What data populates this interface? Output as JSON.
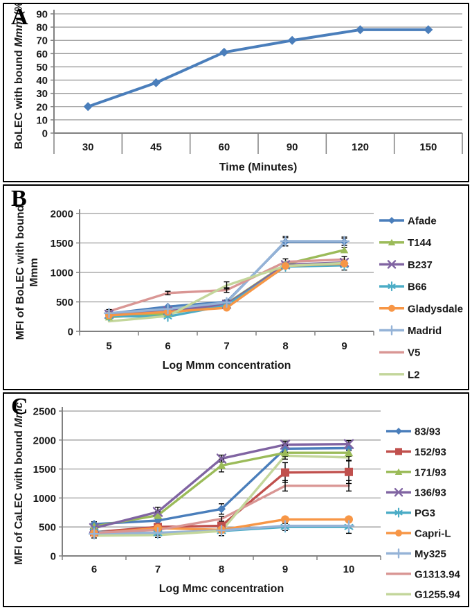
{
  "style": {
    "grid_color": "#9a9a9a",
    "axis_color": "#808080",
    "error_bar_color": "#000000",
    "text_color": "#1a1a1a",
    "background": "#ffffff"
  },
  "chart_data": [
    {
      "panel_label": "A",
      "type": "line",
      "title": "",
      "categories": [
        "30",
        "45",
        "60",
        "90",
        "120",
        "150"
      ],
      "xlabel": "Time (Minutes)",
      "ylabel_segments": [
        [
          {
            "t": "BoLEC with bound ",
            "i": false
          },
          {
            "t": "Mmm",
            "i": true
          },
          {
            "t": " (%)",
            "i": false
          }
        ]
      ],
      "ylim": [
        0,
        90
      ],
      "yticks": [
        0,
        10,
        20,
        30,
        40,
        50,
        60,
        70,
        80,
        90
      ],
      "grid": true,
      "legend_position": "none",
      "series": [
        {
          "name": "BoLEC with bound Mmm",
          "color": "#4a7ebb",
          "marker": "diamond",
          "values": [
            20,
            38,
            61,
            70,
            78,
            78
          ],
          "errors": [
            0,
            0,
            0,
            0,
            0,
            0
          ]
        }
      ]
    },
    {
      "panel_label": "B",
      "type": "line",
      "title": "",
      "categories": [
        "5",
        "6",
        "7",
        "8",
        "9"
      ],
      "xlabel": "Log  Mmm concentration",
      "ylabel_segments": [
        [
          {
            "t": "MFI of BoLEC with bound",
            "i": false
          }
        ],
        [
          {
            "t": "Mmm",
            "i": false
          }
        ]
      ],
      "ylim": [
        0,
        2000
      ],
      "yticks": [
        0,
        500,
        1000,
        1500,
        2000
      ],
      "grid": true,
      "legend_position": "right",
      "series": [
        {
          "name": "Afade",
          "color": "#4a7ebb",
          "marker": "diamond",
          "values": [
            300,
            420,
            500,
            1520,
            1520
          ],
          "errors": [
            30,
            0,
            0,
            70,
            60
          ]
        },
        {
          "name": "T144",
          "color": "#9bbb59",
          "marker": "triangle",
          "values": [
            240,
            300,
            470,
            1140,
            1380
          ],
          "errors": [
            0,
            0,
            0,
            0,
            40
          ]
        },
        {
          "name": "B237",
          "color": "#8064a2",
          "marker": "x",
          "values": [
            290,
            350,
            460,
            1130,
            1170
          ],
          "errors": [
            0,
            0,
            0,
            0,
            0
          ]
        },
        {
          "name": "B66",
          "color": "#4bacc6",
          "marker": "asterisk",
          "values": [
            260,
            250,
            440,
            1100,
            1120
          ],
          "errors": [
            0,
            0,
            0,
            0,
            80
          ]
        },
        {
          "name": "Gladysdale",
          "color": "#f79646",
          "marker": "circle",
          "values": [
            270,
            330,
            400,
            1110,
            1150
          ],
          "errors": [
            0,
            0,
            30,
            0,
            0
          ]
        },
        {
          "name": "Madrid",
          "color": "#95b3d7",
          "marker": "plus",
          "values": [
            310,
            380,
            490,
            1530,
            1530
          ],
          "errors": [
            30,
            0,
            40,
            80,
            70
          ]
        },
        {
          "name": "V5",
          "color": "#d99694",
          "marker": "none",
          "values": [
            340,
            650,
            700,
            1180,
            1220
          ],
          "errors": [
            30,
            30,
            40,
            50,
            50
          ]
        },
        {
          "name": "L2",
          "color": "#c3d69b",
          "marker": "none",
          "values": [
            170,
            260,
            780,
            1110,
            1160
          ],
          "errors": [
            0,
            0,
            60,
            0,
            0
          ]
        }
      ]
    },
    {
      "panel_label": "C",
      "type": "line",
      "title": "",
      "categories": [
        "6",
        "7",
        "8",
        "9",
        "10"
      ],
      "xlabel": "Log Mmc concentration",
      "ylabel_segments": [
        [
          {
            "t": "MFI of CaLEC with bound ",
            "i": false
          },
          {
            "t": "Mmc",
            "i": true
          }
        ]
      ],
      "ylim": [
        0,
        2500
      ],
      "yticks": [
        0,
        500,
        1000,
        1500,
        2000,
        2500
      ],
      "grid": true,
      "legend_position": "right",
      "series": [
        {
          "name": "83/93",
          "color": "#4a7ebb",
          "marker": "diamond",
          "values": [
            550,
            610,
            810,
            1850,
            1860
          ],
          "errors": [
            40,
            60,
            90,
            60,
            40
          ]
        },
        {
          "name": "152/93",
          "color": "#c0504d",
          "marker": "square",
          "values": [
            410,
            500,
            520,
            1440,
            1450
          ],
          "errors": [
            0,
            40,
            40,
            170,
            200
          ]
        },
        {
          "name": "171/93",
          "color": "#9bbb59",
          "marker": "triangle",
          "values": [
            510,
            700,
            1560,
            1780,
            1780
          ],
          "errors": [
            0,
            60,
            110,
            60,
            60
          ]
        },
        {
          "name": "136/93",
          "color": "#8064a2",
          "marker": "x",
          "values": [
            480,
            760,
            1680,
            1920,
            1930
          ],
          "errors": [
            0,
            80,
            60,
            60,
            60
          ]
        },
        {
          "name": "PG3",
          "color": "#4bacc6",
          "marker": "asterisk",
          "values": [
            420,
            390,
            430,
            500,
            500
          ],
          "errors": [
            0,
            0,
            0,
            60,
            110
          ]
        },
        {
          "name": "Capri-L",
          "color": "#f79646",
          "marker": "circle",
          "values": [
            390,
            480,
            450,
            630,
            630
          ],
          "errors": [
            0,
            0,
            0,
            0,
            0
          ]
        },
        {
          "name": "My325",
          "color": "#95b3d7",
          "marker": "plus",
          "values": [
            380,
            400,
            440,
            520,
            520
          ],
          "errors": [
            0,
            40,
            40,
            0,
            0
          ]
        },
        {
          "name": "G1313.94",
          "color": "#d99694",
          "marker": "none",
          "values": [
            400,
            450,
            640,
            1210,
            1210
          ],
          "errors": [
            0,
            0,
            40,
            90,
            90
          ]
        },
        {
          "name": "G1255.94",
          "color": "#c3d69b",
          "marker": "none",
          "values": [
            350,
            360,
            430,
            1730,
            1700
          ],
          "errors": [
            40,
            40,
            80,
            60,
            60
          ]
        }
      ]
    }
  ]
}
